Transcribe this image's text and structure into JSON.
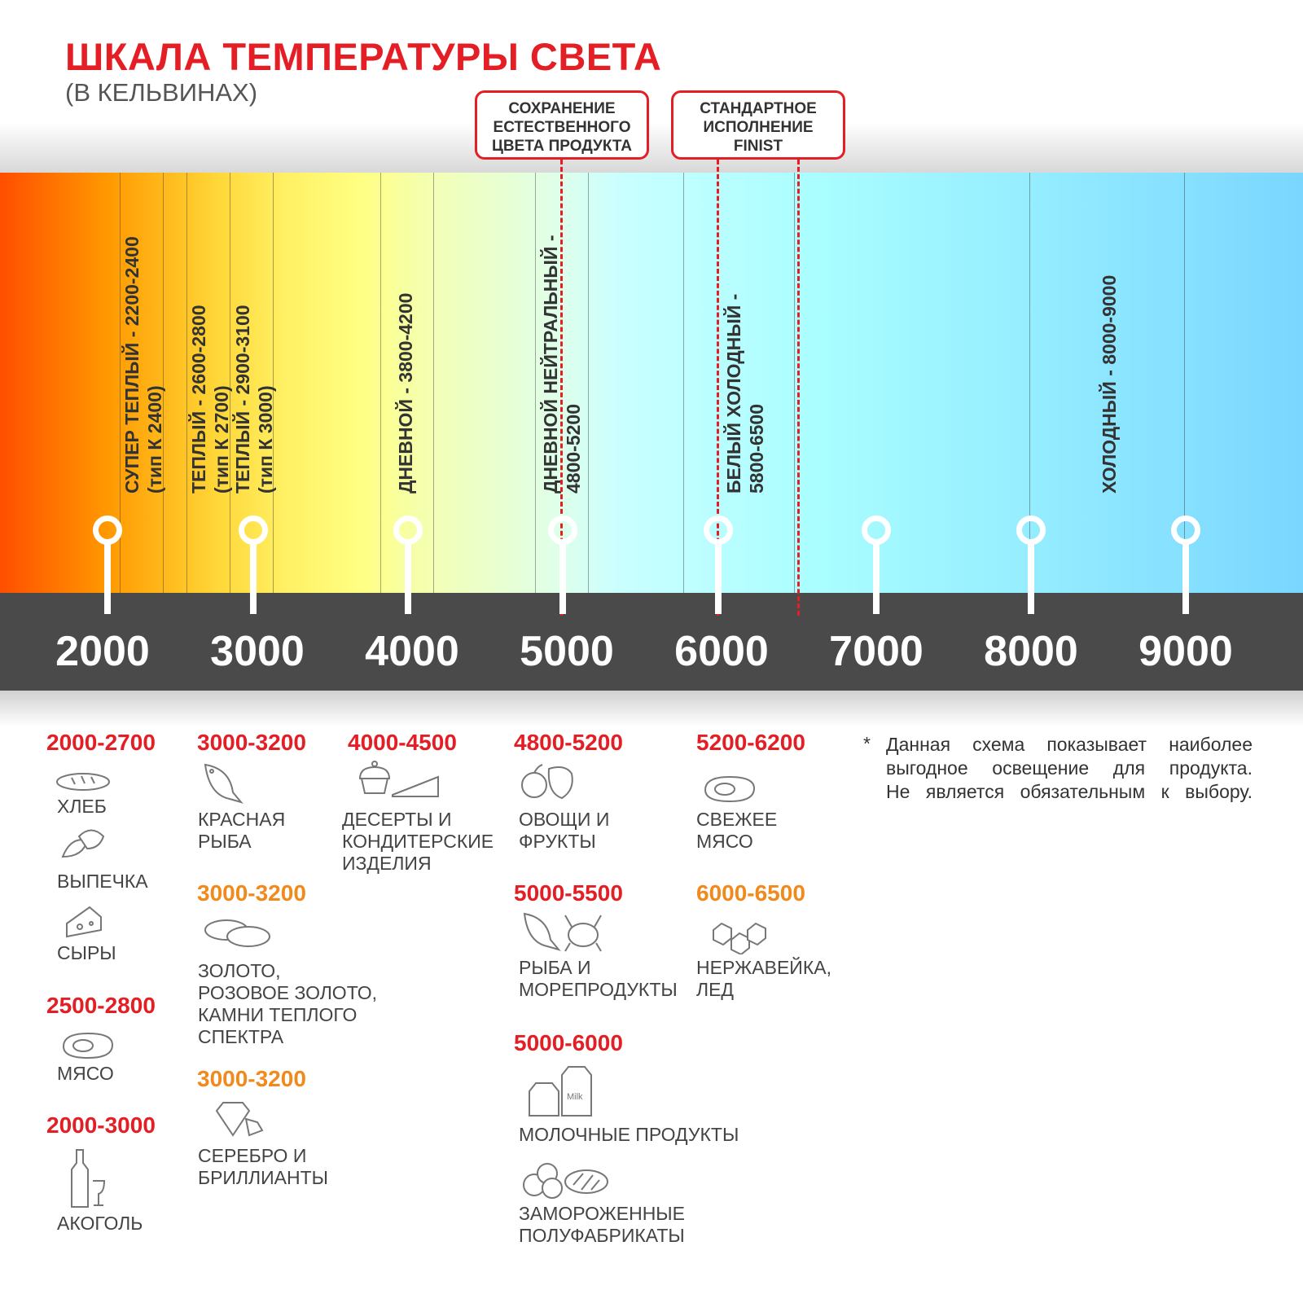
{
  "title": "ШКАЛА ТЕМПЕРАТУРЫ СВЕТА",
  "subtitle": "(В КЕЛЬВИНАХ)",
  "callouts": [
    {
      "lines": [
        "СОХРАНЕНИЕ",
        "ЕСТЕСТВЕННОГО",
        "ЦВЕТА ПРОДУКТА"
      ]
    },
    {
      "lines": [
        "СТАНДАРТНОЕ",
        "ИСПОЛНЕНИЕ",
        "FINIST"
      ]
    }
  ],
  "zones": [
    {
      "line1": "СУПЕР ТЕПЛЫЙ - 2200-2400",
      "line2": "(тип К 2400)"
    },
    {
      "line1": "ТЕПЛЫЙ - 2600-2800",
      "line2": "(тип К 2700)"
    },
    {
      "line1": "ТЕПЛЫЙ - 2900-3100",
      "line2": "(тип К 3000)"
    },
    {
      "line1": "ДНЕВНОЙ - 3800-4200"
    },
    {
      "line1": "ДНЕВНОЙ НЕЙТРАЛЬНЫЙ -",
      "line2": "4800-5200"
    },
    {
      "line1": "БЕЛЫЙ ХОЛОДНЫЙ -",
      "line2": "5800-6500"
    },
    {
      "line1": "ХОЛОДНЫЙ - 8000-9000"
    }
  ],
  "scale": [
    "2000",
    "3000",
    "4000",
    "5000",
    "6000",
    "7000",
    "8000",
    "9000"
  ],
  "colors": {
    "accent_red": "#e31e24",
    "accent_orange": "#f08a1c",
    "scale_bar": "#4a4a4a"
  },
  "products": {
    "c1": {
      "h1": "2000-2700",
      "bread": "ХЛЕБ",
      "pastry": "ВЫПЕЧКА",
      "cheese": "СЫРЫ",
      "h2": "2500-2800",
      "meat": "МЯСО",
      "h3": "2000-3000",
      "alcohol": "АКОГОЛЬ"
    },
    "c2": {
      "h1": "3000-3200",
      "fish": [
        "КРАСНАЯ",
        "РЫБА"
      ],
      "h2": "3000-3200",
      "gold": [
        "ЗОЛОТО,",
        "РОЗОВОЕ ЗОЛОТО,",
        "КАМНИ ТЕПЛОГО",
        "СПЕКТРА"
      ],
      "h3": "3000-3200",
      "silver": [
        "СЕРЕБРО И",
        "БРИЛЛИАНТЫ"
      ]
    },
    "c3": {
      "h1": "4000-4500",
      "desserts": [
        "ДЕСЕРТЫ И",
        "КОНДИТЕРСКИЕ",
        "ИЗДЕЛИЯ"
      ]
    },
    "c4": {
      "h1": "4800-5200",
      "veg": [
        "ОВОЩИ И",
        "ФРУКТЫ"
      ],
      "h2": "5000-5500",
      "seafood": [
        "РЫБА И",
        "МОРЕПРОДУКТЫ"
      ],
      "h3": "5000-6000",
      "dairy": "МОЛОЧНЫЕ ПРОДУКТЫ",
      "frozen": [
        "ЗАМОРОЖЕННЫЕ",
        "ПОЛУФАБРИКАТЫ"
      ]
    },
    "c5": {
      "h1": "5200-6200",
      "freshmeat": [
        "СВЕЖЕЕ",
        "МЯСО"
      ],
      "h2": "6000-6500",
      "steel": [
        "НЕРЖАВЕЙКА,",
        "ЛЕД"
      ]
    }
  },
  "note": {
    "star": "*",
    "lines": [
      "Данная схема показывает наиболее",
      "выгодное освещение для продукта.",
      "Не является обязательным к выбору."
    ]
  }
}
